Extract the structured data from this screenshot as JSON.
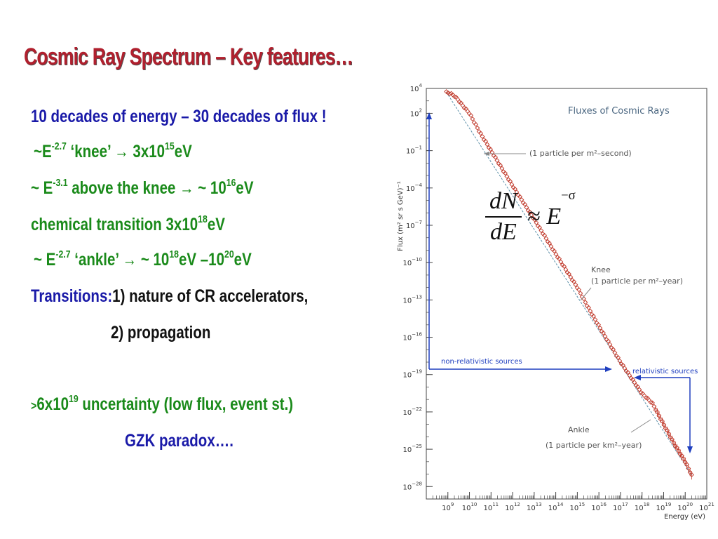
{
  "slide": {
    "title": "Cosmic Ray Spectrum – Key features…",
    "l1": "10 decades of energy – 30 decades of flux !",
    "l2a": "~E",
    "l2exp": "-2.7",
    "l2b": " ‘knee’ ",
    "l2arrow": "→",
    "l2c": " 3x10",
    "l2exp2": "15",
    "l2d": "eV",
    "l3a": "~ E",
    "l3exp": "-3.1",
    "l3b": " above the knee ",
    "l3arrow": "→",
    "l3c": " ~ 10",
    "l3exp2": "16",
    "l3d": "eV",
    "l4a": "chemical transition  3x10",
    "l4exp": "18",
    "l4b": "eV",
    "l5a": "~ E",
    "l5exp": "-2.7",
    "l5b": " ‘ankle’ ",
    "l5arrow": "→",
    "l5c": " ~ 10",
    "l5exp2": "18",
    "l5d": "eV –10",
    "l5exp3": "20",
    "l5e": "eV",
    "l6a": "Transitions:",
    "l6b": "1) nature of CR accelerators,",
    "l7": "2) propagation",
    "l8a": ">",
    "l8b": "6x10",
    "l8exp": "19",
    "l8c": " uncertainty (low flux, event st.)",
    "l9": "GZK paradox….",
    "formula_num": "dN",
    "formula_den": "dE",
    "formula_rel": " ≈ ",
    "formula_base": "E",
    "formula_exp": "−σ"
  },
  "chart_data": {
    "type": "scatter",
    "title": "Fluxes of Cosmic Rays",
    "xlabel": "Energy (eV)",
    "ylabel": "Flux (m² sr s GeV)⁻¹",
    "x_scale": "log",
    "y_scale": "log",
    "xlim": [
      100000000.0,
      1e+21
    ],
    "ylim": [
      1e-29,
      10000.0
    ],
    "x_ticks": [
      {
        "value": 1000000000.0,
        "base": "10",
        "exp": "9"
      },
      {
        "value": 10000000000.0,
        "base": "10",
        "exp": "10"
      },
      {
        "value": 100000000000.0,
        "base": "10",
        "exp": "11"
      },
      {
        "value": 1000000000000.0,
        "base": "10",
        "exp": "12"
      },
      {
        "value": 10000000000000.0,
        "base": "10",
        "exp": "13"
      },
      {
        "value": 100000000000000.0,
        "base": "10",
        "exp": "14"
      },
      {
        "value": 1000000000000000.0,
        "base": "10",
        "exp": "15"
      },
      {
        "value": 1e+16,
        "base": "10",
        "exp": "16"
      },
      {
        "value": 1e+17,
        "base": "10",
        "exp": "17"
      },
      {
        "value": 1e+18,
        "base": "10",
        "exp": "18"
      },
      {
        "value": 1e+19,
        "base": "10",
        "exp": "19"
      },
      {
        "value": 1e+20,
        "base": "10",
        "exp": "20"
      },
      {
        "value": 1e+21,
        "base": "10",
        "exp": "21"
      }
    ],
    "y_ticks": [
      {
        "value": 10000.0,
        "base": "10",
        "exp": "4"
      },
      {
        "value": 100.0,
        "base": "10",
        "exp": "2"
      },
      {
        "value": 0.1,
        "base": "10",
        "exp": "−1"
      },
      {
        "value": 0.0001,
        "base": "10",
        "exp": "−4"
      },
      {
        "value": 1e-07,
        "base": "10",
        "exp": "−7"
      },
      {
        "value": 1e-10,
        "base": "10",
        "exp": "−10"
      },
      {
        "value": 1e-13,
        "base": "10",
        "exp": "−13"
      },
      {
        "value": 1e-16,
        "base": "10",
        "exp": "−16"
      },
      {
        "value": 1e-19,
        "base": "10",
        "exp": "−19"
      },
      {
        "value": 1e-22,
        "base": "10",
        "exp": "−22"
      },
      {
        "value": 1e-25,
        "base": "10",
        "exp": "−25"
      },
      {
        "value": 1e-28,
        "base": "10",
        "exp": "−28"
      }
    ],
    "series": [
      {
        "x": [
          850000000.0,
          1000000000.0,
          1500000000.0,
          2000000000.0,
          3000000000.0,
          5000000000.0,
          10000000000.0,
          30000000000.0,
          100000000000.0,
          1000000000000.0,
          10000000000000.0,
          100000000000000.0,
          1000000000000000.0,
          3000000000000000.0,
          1e+16,
          1e+17,
          1e+18,
          3e+18,
          1e+19,
          3e+19,
          1e+20,
          2e+20
        ],
        "y": [
          5000.0,
          4500.0,
          3500.0,
          2500.0,
          1200.0,
          400.0,
          100.0,
          3,
          0.1,
          0.00015,
          3e-07,
          5e-10,
          1e-12,
          3e-14,
          8e-16,
          1e-18,
          3e-21,
          5e-22,
          1e-23,
          3e-25,
          1e-26,
          8e-28
        ]
      }
    ],
    "annotations": [
      {
        "text": "(1 particle per m²–second)",
        "x": 100000000000.0,
        "y": 0.1
      },
      {
        "text": "Knee",
        "x": 1000000000000000.0
      },
      {
        "text": "(1 particle per m²–year)",
        "x": 1000000000000000.0,
        "y": 1e-12
      },
      {
        "text": "Ankle",
        "x": 1e+19
      },
      {
        "text": "(1 particle per km²–year)",
        "x": 1e+19,
        "y": 1e-23
      },
      {
        "text": "non-relativistic sources"
      },
      {
        "text": "relativistic sources"
      }
    ],
    "colors": {
      "points": "#c0392b",
      "fit_line": "#5b8fa8",
      "arrows": "#1f3fbf",
      "title": "#4a6680",
      "annotations": "#555555"
    }
  }
}
